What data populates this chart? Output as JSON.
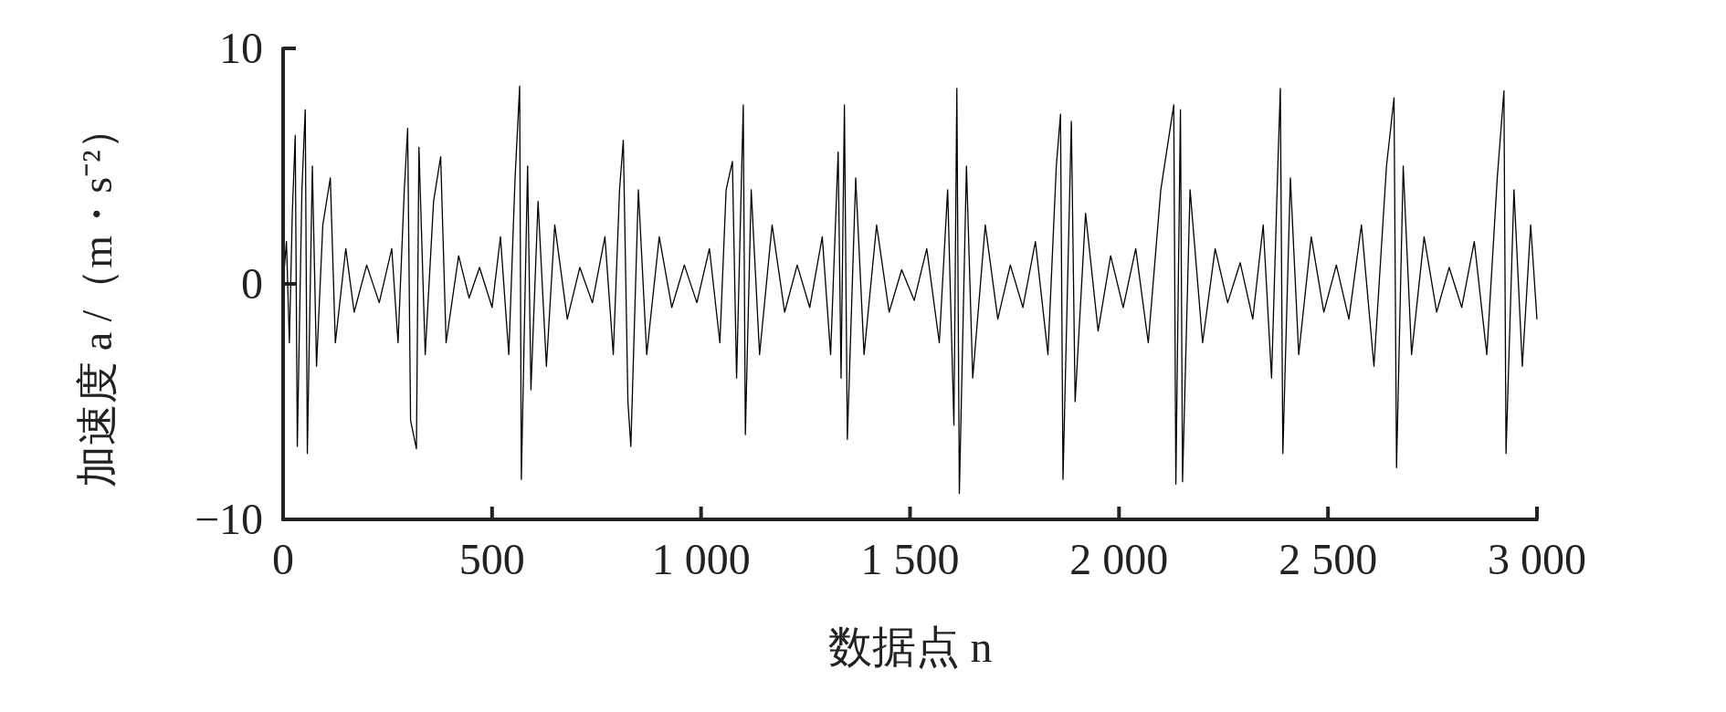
{
  "chart_data": {
    "type": "line",
    "xlabel": "数据点 n",
    "ylabel": "加速度 a /（m・s⁻²）",
    "xlim": [
      0,
      3000
    ],
    "ylim": [
      -10,
      10
    ],
    "xticks": [
      0,
      500,
      {
        "value": 1000,
        "label": "1 000"
      },
      {
        "value": 1500,
        "label": "1 500"
      },
      {
        "value": 2000,
        "label": "2 000"
      },
      {
        "value": 2500,
        "label": "2 500"
      },
      {
        "value": 3000,
        "label": "3 000"
      }
    ],
    "yticks": [
      {
        "value": -10,
        "label": "−10"
      },
      0,
      10
    ],
    "grid": false,
    "line_style": "solid",
    "marker": "none",
    "series": [
      {
        "color": "#000000",
        "x": [
          0,
          8,
          15,
          22,
          29,
          34,
          45,
          53,
          58,
          70,
          80,
          95,
          113,
          125,
          150,
          170,
          200,
          230,
          260,
          275,
          290,
          298,
          305,
          319,
          325,
          340,
          360,
          377,
          390,
          420,
          445,
          470,
          500,
          520,
          540,
          555,
          566,
          570,
          585,
          593,
          610,
          630,
          650,
          680,
          710,
          740,
          770,
          790,
          805,
          814,
          825,
          832,
          850,
          870,
          900,
          930,
          960,
          990,
          1020,
          1045,
          1060,
          1075,
          1085,
          1101,
          1106,
          1120,
          1140,
          1170,
          1200,
          1230,
          1260,
          1290,
          1310,
          1328,
          1335,
          1343,
          1350,
          1370,
          1390,
          1420,
          1450,
          1480,
          1510,
          1540,
          1570,
          1590,
          1605,
          1612,
          1618,
          1635,
          1650,
          1680,
          1710,
          1740,
          1770,
          1800,
          1830,
          1850,
          1860,
          1866,
          1886,
          1895,
          1920,
          1950,
          1980,
          2010,
          2040,
          2070,
          2100,
          2131,
          2136,
          2147,
          2152,
          2170,
          2200,
          2230,
          2260,
          2290,
          2320,
          2345,
          2365,
          2380,
          2386,
          2392,
          2410,
          2430,
          2460,
          2490,
          2520,
          2550,
          2580,
          2610,
          2640,
          2658,
          2664,
          2680,
          2700,
          2730,
          2760,
          2790,
          2820,
          2850,
          2880,
          2905,
          2921,
          2926,
          2945,
          2965,
          2985,
          3000
        ],
        "values": [
          0,
          1.8,
          -2.5,
          3,
          6.3,
          -6.9,
          4,
          7.4,
          -7.2,
          5,
          -3.5,
          2.5,
          4.5,
          -2.5,
          1.5,
          -1.2,
          0.8,
          -0.8,
          1.5,
          -2.5,
          4,
          6.6,
          -5.8,
          -7,
          5.8,
          -3,
          3.5,
          5.4,
          -2.5,
          1.2,
          -0.6,
          0.7,
          -1,
          2,
          -3,
          4.5,
          8.4,
          -8.3,
          5,
          -4.5,
          3.5,
          -3.5,
          2.5,
          -1.5,
          0.7,
          -0.8,
          2,
          -3,
          4,
          6.1,
          -5,
          -6.9,
          4,
          -3,
          2,
          -1,
          0.8,
          -0.8,
          1.5,
          -2.5,
          4,
          5.2,
          -4,
          7.6,
          -6.4,
          4,
          -3,
          2.5,
          -1.2,
          0.8,
          -1,
          2,
          -3,
          5.6,
          -4,
          7.6,
          -6.6,
          4.5,
          -3,
          2.5,
          -1.2,
          0.6,
          -0.7,
          1.5,
          -2.5,
          4,
          -6,
          8.3,
          -8.9,
          5,
          -4,
          2.5,
          -1.5,
          0.8,
          -1,
          1.8,
          -3,
          5,
          7.2,
          -8.3,
          6.9,
          -5,
          3,
          -2,
          1.2,
          -1,
          1.5,
          -2.5,
          4,
          7.6,
          -8.5,
          7.4,
          -8.4,
          4,
          -2.5,
          1.5,
          -0.8,
          0.9,
          -1.5,
          2.5,
          -4,
          5,
          8.3,
          -7.2,
          4.5,
          -3,
          2,
          -1.2,
          0.8,
          -1.5,
          2.5,
          -3.5,
          5,
          7.9,
          -7.8,
          5,
          -3,
          2,
          -1.2,
          0.7,
          -1,
          1.8,
          -3,
          4.5,
          8.2,
          -7.2,
          4,
          -3.5,
          2.5,
          -1.5
        ]
      }
    ]
  }
}
